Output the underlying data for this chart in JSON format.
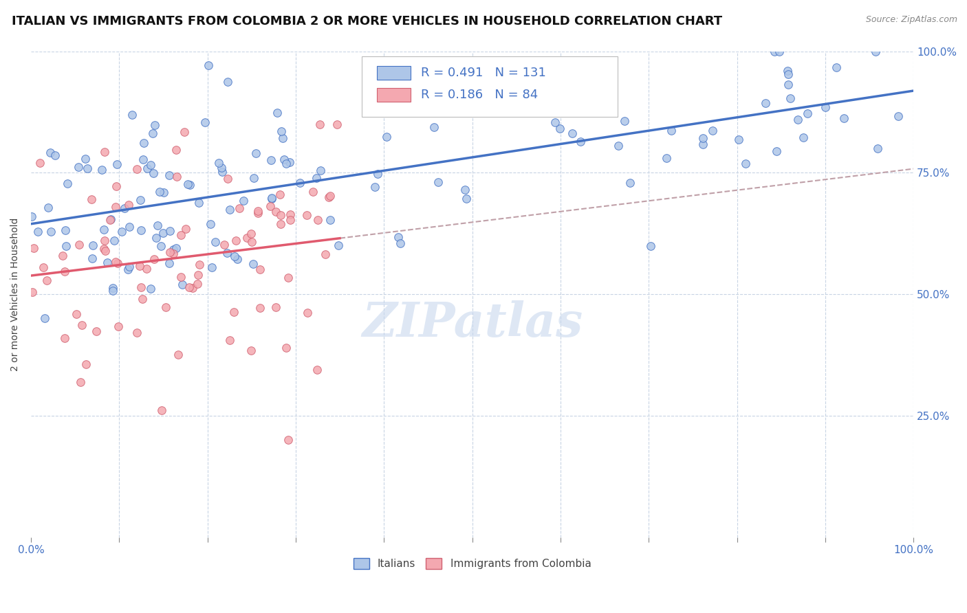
{
  "title": "ITALIAN VS IMMIGRANTS FROM COLOMBIA 2 OR MORE VEHICLES IN HOUSEHOLD CORRELATION CHART",
  "source_text": "Source: ZipAtlas.com",
  "ylabel": "2 or more Vehicles in Household",
  "xlim": [
    0,
    1
  ],
  "ylim": [
    0,
    1
  ],
  "R_italian": 0.491,
  "N_italian": 131,
  "R_colombia": 0.186,
  "N_colombia": 84,
  "color_italian": "#aec6e8",
  "color_colombia": "#f4a8b0",
  "color_italian_line": "#4472c4",
  "color_colombia_line": "#e05a6e",
  "color_dashed": "#c0a0a8",
  "legend_label_italian": "Italians",
  "legend_label_colombia": "Immigrants from Colombia",
  "watermark": "ZIPatlas",
  "watermark_color": "#c8d8ee",
  "background_color": "#ffffff",
  "grid_color": "#c8d4e4",
  "title_fontsize": 13,
  "axis_label_fontsize": 10,
  "tick_fontsize": 11,
  "source_fontsize": 9
}
